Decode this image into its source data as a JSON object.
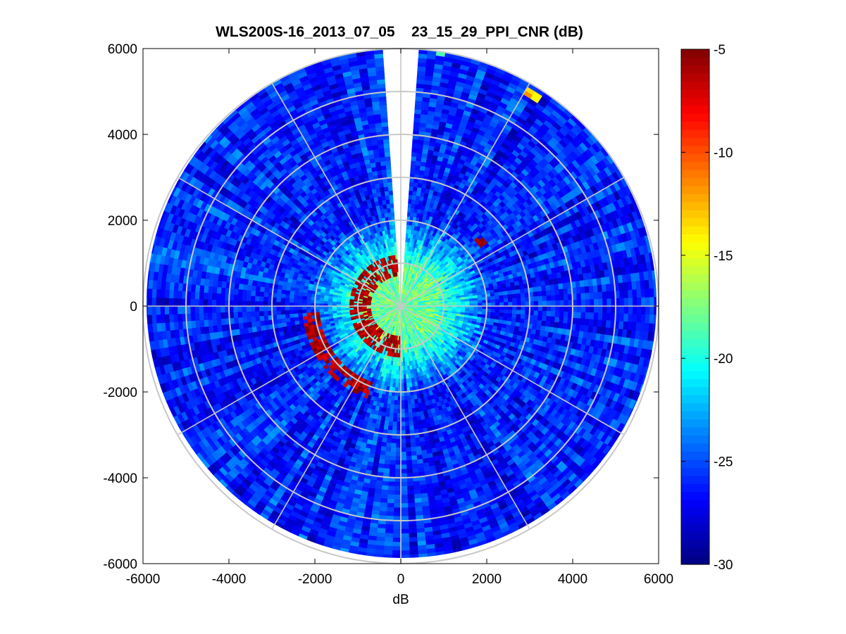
{
  "chart_data": {
    "type": "heatmap",
    "subtype": "polar_ppi",
    "title": "WLS200S-16_2013_07_05__23_15_29_PPI_CNR (dB)",
    "xlabel": "dB",
    "ylabel": "",
    "xlim": [
      -6000,
      6000
    ],
    "ylim": [
      -6000,
      6000
    ],
    "xticks": [
      -6000,
      -4000,
      -2000,
      0,
      2000,
      4000,
      6000
    ],
    "yticks": [
      -6000,
      -4000,
      -2000,
      0,
      2000,
      4000,
      6000
    ],
    "xtick_labels": [
      "-6000",
      "-4000",
      "-2000",
      "0",
      "2000",
      "4000",
      "6000"
    ],
    "ytick_labels": [
      "-6000",
      "-4000",
      "-2000",
      "0",
      "2000",
      "4000",
      "6000"
    ],
    "max_range": 6000,
    "range_rings": [
      1000,
      2000,
      3000,
      4000,
      5000,
      6000
    ],
    "spoke_angles_deg": [
      0,
      30,
      60,
      90,
      120,
      150,
      180,
      210,
      240,
      270,
      300,
      330
    ],
    "missing_sector_deg": [
      -4,
      4
    ],
    "colorbar": {
      "label": "dB",
      "colormap": "jet",
      "range": [
        -30,
        -5
      ],
      "ticks": [
        -5,
        -10,
        -15,
        -20,
        -25,
        -30
      ],
      "tick_labels": [
        "-5",
        "-10",
        "-15",
        "-20",
        "-25",
        "-30"
      ]
    },
    "field": {
      "background_dB": -26,
      "near_field": {
        "radius_max": 2200,
        "peak_dB": -18
      },
      "features": [
        {
          "name": "inner-ring-echo",
          "r_min": 700,
          "r_max": 1200,
          "az_min": 180,
          "az_max": 360,
          "dB": -6
        },
        {
          "name": "west-arc-echo",
          "r_min": 1900,
          "r_max": 2300,
          "az_min": 200,
          "az_max": 265,
          "dB": -6
        },
        {
          "name": "north-east-patch",
          "r_min": 2300,
          "r_max": 2500,
          "az_min": 48,
          "az_max": 54,
          "dB": -6
        },
        {
          "name": "east-spot",
          "r_min": 2700,
          "r_max": 2800,
          "az_min": 82,
          "az_max": 84,
          "dB": -6
        },
        {
          "name": "far-north-patch",
          "r_min": 5800,
          "r_max": 6000,
          "az_min": 8,
          "az_max": 12,
          "dB": -18
        },
        {
          "name": "far-north-east-patch",
          "r_min": 5700,
          "r_max": 5900,
          "az_min": 30,
          "az_max": 33,
          "dB": -13
        }
      ]
    }
  }
}
